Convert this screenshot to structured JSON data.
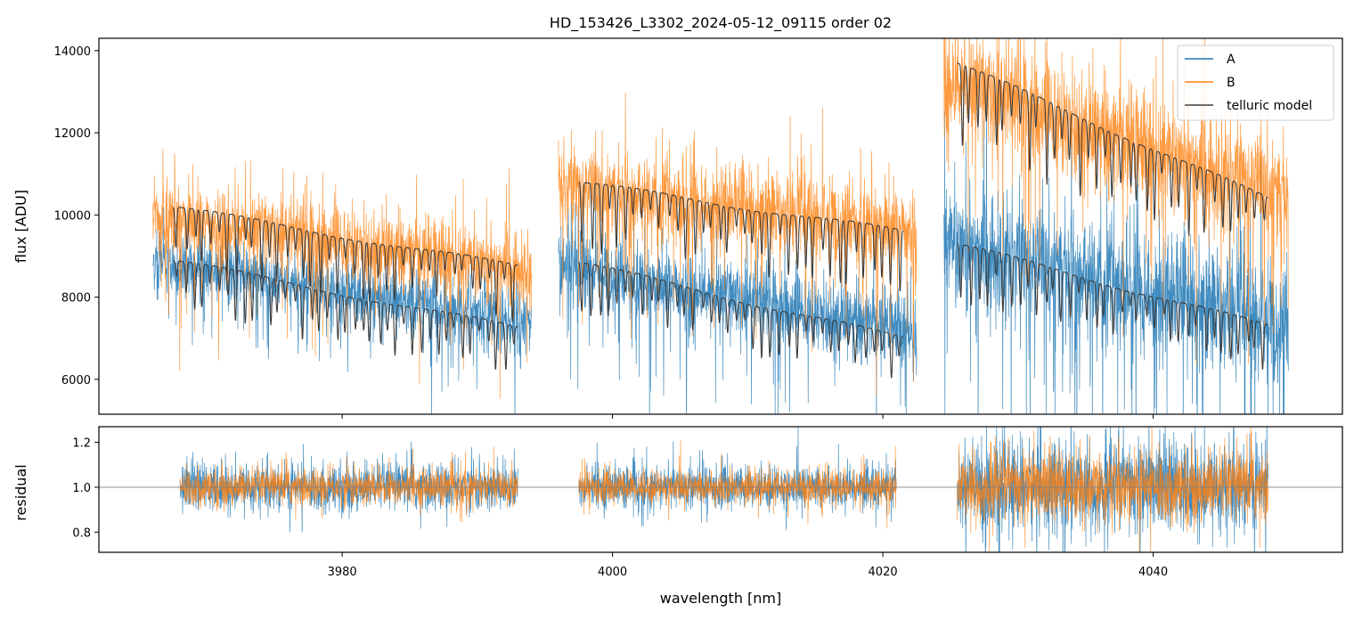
{
  "chart_data": {
    "type": "line",
    "title": "HD_153426_L3302_2024-05-12_09115  order 02",
    "xlabel": "wavelength [nm]",
    "xlim": [
      3962,
      4054
    ],
    "x_ticks": [
      3980,
      4000,
      4020,
      4040
    ],
    "x_tick_labels": [
      "3980",
      "4000",
      "4020",
      "4040"
    ],
    "colors": {
      "A": "#1f77b4",
      "B": "#ff7f0e",
      "model": "#3c3c3c",
      "ref": "#808080"
    },
    "top_panel": {
      "ylabel": "flux [ADU]",
      "ylim": [
        5150,
        14300
      ],
      "y_ticks": [
        6000,
        8000,
        10000,
        12000,
        14000
      ],
      "y_tick_labels": [
        "6000",
        "8000",
        "10000",
        "12000",
        "14000"
      ],
      "segments": [
        {
          "x_range": [
            3966,
            3994
          ],
          "A_level": [
            8900,
            7350
          ],
          "B_level": [
            10000,
            8650
          ],
          "noise_A": 650,
          "noise_B": 800
        },
        {
          "x_range": [
            3996,
            4022.5
          ],
          "A_level": [
            8800,
            7150
          ],
          "B_level": [
            10650,
            9650
          ],
          "noise_A": 800,
          "noise_B": 900
        },
        {
          "x_range": [
            4024.5,
            4050
          ],
          "A_level": [
            9300,
            7300
          ],
          "B_level": [
            13300,
            10400
          ],
          "noise_A": 1300,
          "noise_B": 1200
        }
      ],
      "model_segments": [
        {
          "x_range": [
            3967.5,
            3993
          ],
          "A_level": [
            8900,
            7250
          ],
          "B_level": [
            10200,
            8750
          ]
        },
        {
          "x_range": [
            3997.5,
            4021.5
          ],
          "A_level": [
            8850,
            7000
          ],
          "B_level": [
            10800,
            9600
          ]
        },
        {
          "x_range": [
            4025.5,
            4048.5
          ],
          "A_level": [
            9300,
            7300
          ],
          "B_level": [
            13700,
            10400
          ]
        }
      ],
      "legend": {
        "position": "top-right",
        "entries": [
          "A",
          "B",
          "telluric model"
        ]
      }
    },
    "bottom_panel": {
      "ylabel": "residual",
      "ylim": [
        0.71,
        1.27
      ],
      "y_ticks": [
        0.8,
        1.0,
        1.2
      ],
      "y_tick_labels": [
        "0.8",
        "1.0",
        "1.2"
      ],
      "reference_line": 1.0,
      "segments": [
        {
          "x_range": [
            3968,
            3993
          ],
          "noise": 0.08
        },
        {
          "x_range": [
            3997.5,
            4021
          ],
          "noise": 0.07
        },
        {
          "x_range": [
            4025.5,
            4048.5
          ],
          "noise": 0.15
        }
      ]
    }
  }
}
